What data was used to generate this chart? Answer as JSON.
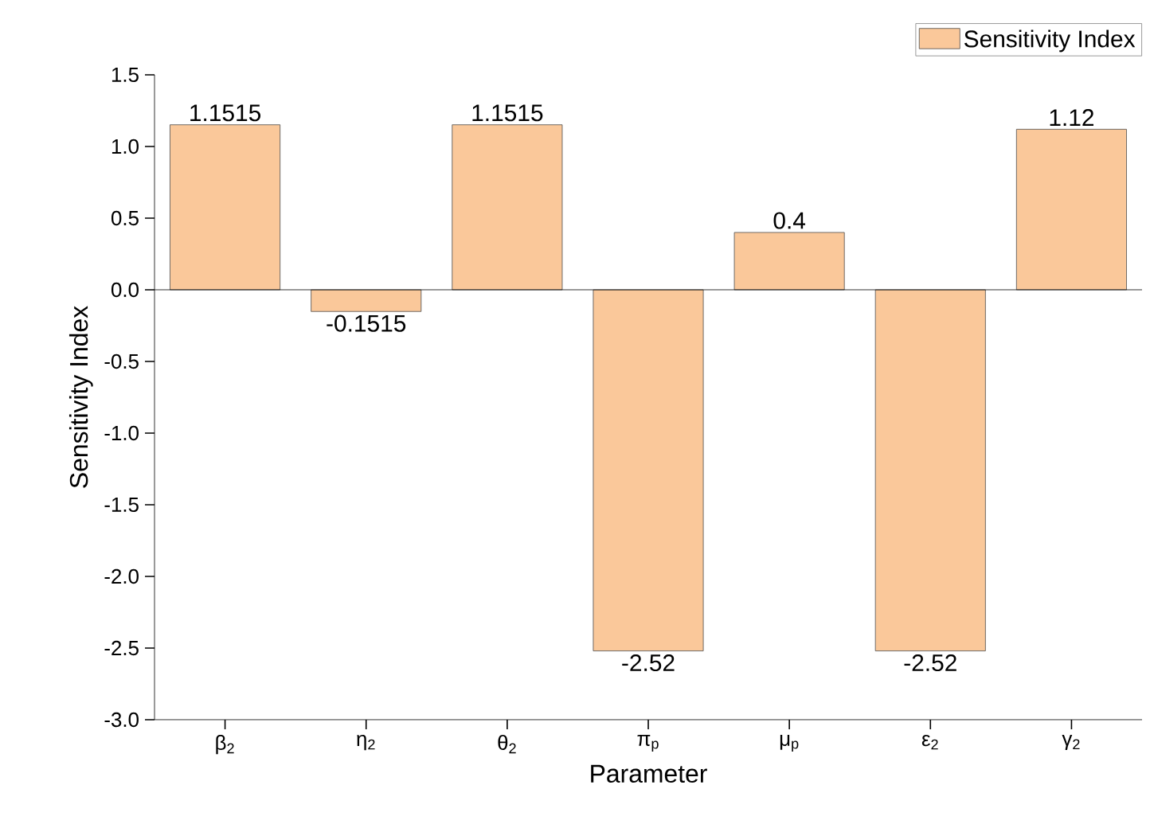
{
  "chart_data": {
    "type": "bar",
    "xlabel": "Parameter",
    "ylabel": "Sensitivity Index",
    "categories": [
      "β$_{2}$",
      "η$_{2}$",
      "θ$_{2}$",
      "π$_{p}$",
      "μ$_{p}$",
      "ε$_{2}$",
      "γ$_{2}$"
    ],
    "series": [
      {
        "name": "Sensitivity Index",
        "color": "#fac89a",
        "values": [
          1.1515,
          -0.1515,
          1.1515,
          -2.52,
          0.4,
          -2.52,
          1.12
        ]
      }
    ],
    "ylim": [
      -3.0,
      1.5
    ],
    "yticks": [
      {
        "value": -3,
        "label": "-3.0"
      },
      -2.5,
      {
        "value": -2,
        "label": "-2.0"
      },
      -1.5,
      {
        "value": -1,
        "label": "-1.0"
      },
      -0.5,
      {
        "value": 0,
        "label": "0.0"
      },
      0.5,
      {
        "value": 1,
        "label": "1.0"
      },
      1.5
    ],
    "ref_lines": [
      {
        "axis": "y",
        "value": 0
      }
    ],
    "data_labels": true,
    "legend": "top right"
  }
}
